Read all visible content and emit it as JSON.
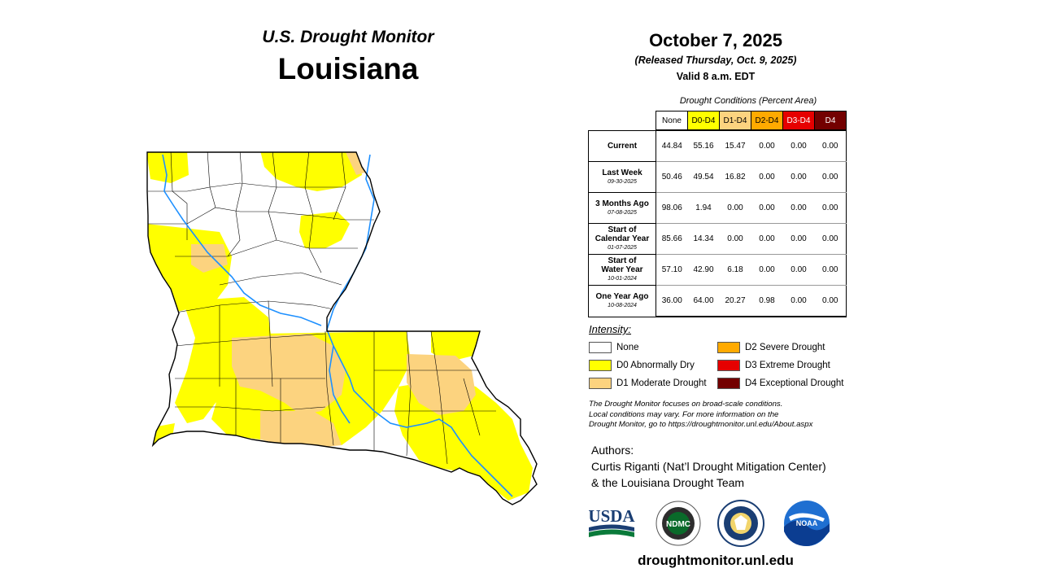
{
  "header": {
    "subtitle": "U.S. Drought Monitor",
    "state": "Louisiana",
    "date": "October 7, 2025",
    "released": "(Released Thursday, Oct. 9, 2025)",
    "valid": "Valid 8 a.m. EDT"
  },
  "table": {
    "caption": "Drought Conditions (Percent Area)",
    "columns": [
      {
        "label": "None",
        "color": "#ffffff",
        "text_color": "#000000"
      },
      {
        "label": "D0-D4",
        "color": "#ffff00",
        "text_color": "#000000"
      },
      {
        "label": "D1-D4",
        "color": "#fcd37f",
        "text_color": "#000000"
      },
      {
        "label": "D2-D4",
        "color": "#ffaa00",
        "text_color": "#000000"
      },
      {
        "label": "D3-D4",
        "color": "#e60000",
        "text_color": "#ffffff"
      },
      {
        "label": "D4",
        "color": "#730000",
        "text_color": "#ffffff"
      }
    ],
    "rows": [
      {
        "label": [
          "Current"
        ],
        "date": "",
        "values": [
          "44.84",
          "55.16",
          "15.47",
          "0.00",
          "0.00",
          "0.00"
        ]
      },
      {
        "label": [
          "Last Week"
        ],
        "date": "09-30-2025",
        "values": [
          "50.46",
          "49.54",
          "16.82",
          "0.00",
          "0.00",
          "0.00"
        ]
      },
      {
        "label": [
          "3 Months Ago"
        ],
        "date": "07-08-2025",
        "values": [
          "98.06",
          "1.94",
          "0.00",
          "0.00",
          "0.00",
          "0.00"
        ]
      },
      {
        "label": [
          "Start of",
          "Calendar Year"
        ],
        "date": "01-07-2025",
        "values": [
          "85.66",
          "14.34",
          "0.00",
          "0.00",
          "0.00",
          "0.00"
        ]
      },
      {
        "label": [
          "Start of",
          "Water Year"
        ],
        "date": "10-01-2024",
        "values": [
          "57.10",
          "42.90",
          "6.18",
          "0.00",
          "0.00",
          "0.00"
        ]
      },
      {
        "label": [
          "One Year Ago"
        ],
        "date": "10-08-2024",
        "values": [
          "36.00",
          "64.00",
          "20.27",
          "0.98",
          "0.00",
          "0.00"
        ]
      }
    ]
  },
  "legend": {
    "title": "Intensity:",
    "items": [
      {
        "label": "None",
        "color": "#ffffff"
      },
      {
        "label": "D0 Abnormally Dry",
        "color": "#ffff00"
      },
      {
        "label": "D1 Moderate Drought",
        "color": "#fcd37f"
      },
      {
        "label": "D2 Severe Drought",
        "color": "#ffaa00"
      },
      {
        "label": "D3 Extreme Drought",
        "color": "#e60000"
      },
      {
        "label": "D4 Exceptional Drought",
        "color": "#730000"
      }
    ]
  },
  "note": [
    "The Drought Monitor focuses on broad-scale conditions.",
    "Local conditions may vary. For more information on the",
    "Drought Monitor, go to https://droughtmonitor.unl.edu/About.aspx"
  ],
  "authors": [
    "Authors:",
    "Curtis Riganti (Nat’l Drought Mitigation Center)",
    "& the Louisiana Drought Team"
  ],
  "logos": {
    "usda": "USDA",
    "ndmc": "NDMC",
    "noaa": "NOAA",
    "doc_icon": "eagle-seal-icon"
  },
  "website": "droughtmonitor.unl.edu",
  "map": {
    "colors": {
      "none": "#ffffff",
      "d0": "#ffff00",
      "d1": "#fcd37f",
      "river": "#1e90ff",
      "border": "#000000"
    }
  }
}
